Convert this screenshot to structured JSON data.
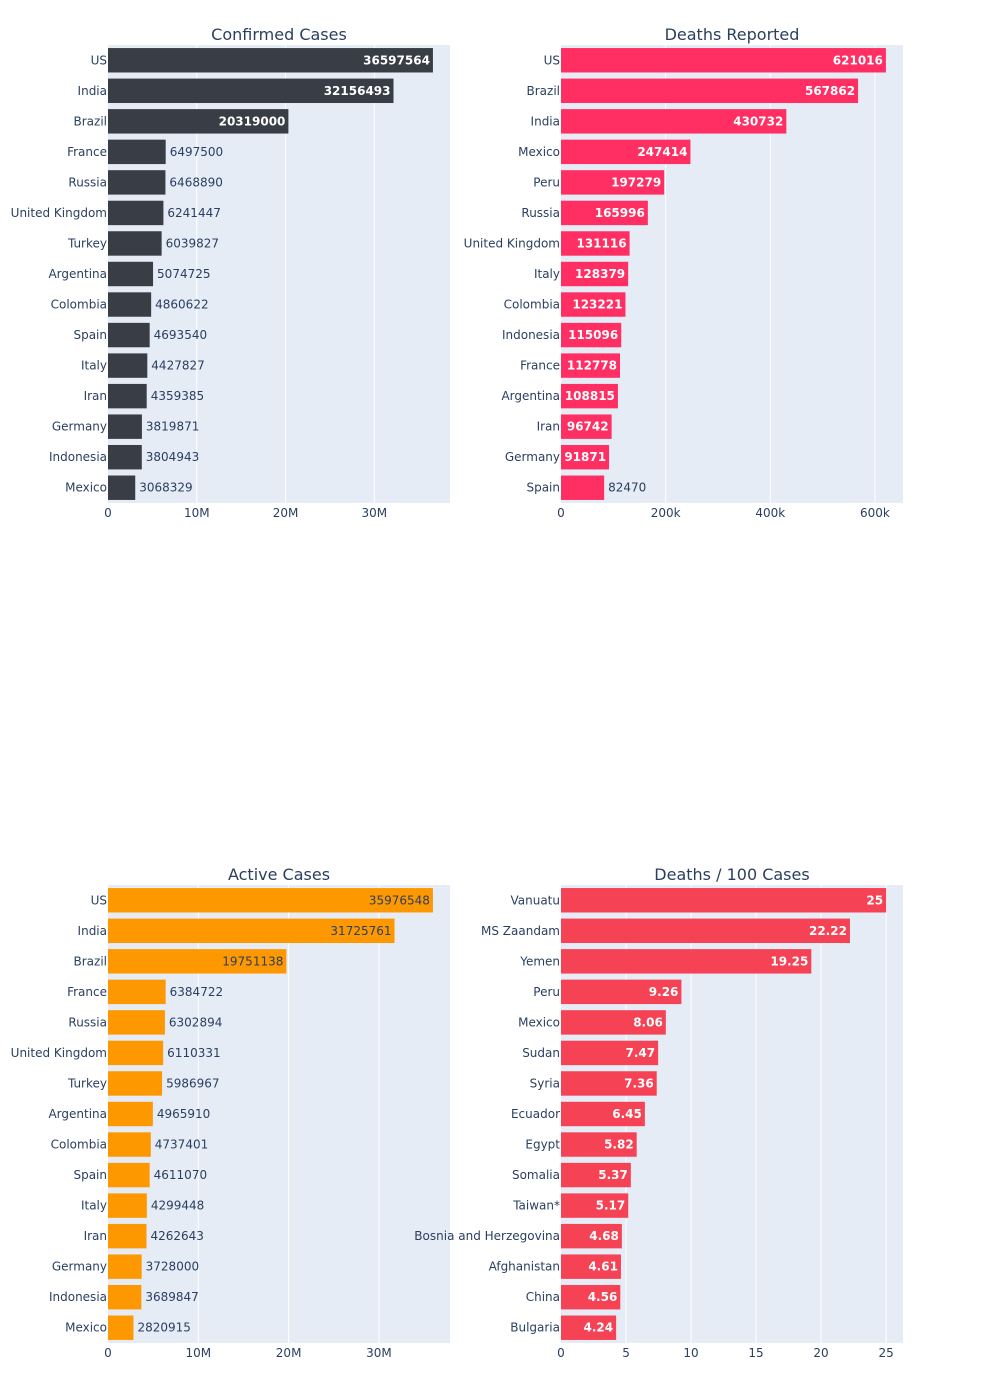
{
  "chart_data": [
    {
      "type": "bar",
      "orientation": "horizontal",
      "title": "Confirmed Cases",
      "color": "#393e46",
      "categories": [
        "US",
        "India",
        "Brazil",
        "France",
        "Russia",
        "United Kingdom",
        "Turkey",
        "Argentina",
        "Colombia",
        "Spain",
        "Italy",
        "Iran",
        "Germany",
        "Indonesia",
        "Mexico"
      ],
      "values": [
        36597564,
        32156493,
        20319000,
        6497500,
        6468890,
        6241447,
        6039827,
        5074725,
        4860622,
        4693540,
        4427827,
        4359385,
        3819871,
        3804943,
        3068329
      ],
      "xlim": [
        0,
        38520000
      ],
      "xticks": [
        0,
        10000000,
        20000000,
        30000000
      ],
      "xticklabels": [
        "0",
        "10M",
        "20M",
        "30M"
      ],
      "xlabel": "",
      "ylabel": ""
    },
    {
      "type": "bar",
      "orientation": "horizontal",
      "title": "Deaths Reported",
      "color": "#ff2e63",
      "categories": [
        "US",
        "Brazil",
        "India",
        "Mexico",
        "Peru",
        "Russia",
        "United Kingdom",
        "Italy",
        "Colombia",
        "Indonesia",
        "France",
        "Argentina",
        "Iran",
        "Germany",
        "Spain"
      ],
      "values": [
        621016,
        567862,
        430732,
        247414,
        197279,
        165996,
        131116,
        128379,
        123221,
        115096,
        112778,
        108815,
        96742,
        91871,
        82470
      ],
      "xlim": [
        0,
        653700
      ],
      "xticks": [
        0,
        200000,
        400000,
        600000
      ],
      "xticklabels": [
        "0",
        "200k",
        "400k",
        "600k"
      ],
      "xlabel": "",
      "ylabel": ""
    },
    {
      "type": "bar",
      "orientation": "horizontal",
      "title": "Active Cases",
      "color": "#fe9801",
      "categories": [
        "US",
        "India",
        "Brazil",
        "France",
        "Russia",
        "United Kingdom",
        "Turkey",
        "Argentina",
        "Colombia",
        "Spain",
        "Italy",
        "Iran",
        "Germany",
        "Indonesia",
        "Mexico"
      ],
      "values": [
        35976548,
        31725761,
        19751138,
        6384722,
        6302894,
        6110331,
        5986967,
        4965910,
        4737401,
        4611070,
        4299448,
        4262643,
        3728000,
        3689847,
        2820915
      ],
      "xlim": [
        0,
        37870000
      ],
      "xticks": [
        0,
        10000000,
        20000000,
        30000000
      ],
      "xticklabels": [
        "0",
        "10M",
        "20M",
        "30M"
      ],
      "xlabel": "",
      "ylabel": ""
    },
    {
      "type": "bar",
      "orientation": "horizontal",
      "title": "Deaths / 100 Cases",
      "color": "#f54254",
      "categories": [
        "Vanuatu",
        "MS Zaandam",
        "Yemen",
        "Peru",
        "Mexico",
        "Sudan",
        "Syria",
        "Ecuador",
        "Egypt",
        "Somalia",
        "Taiwan*",
        "Bosnia and Herzegovina",
        "Afghanistan",
        "China",
        "Bulgaria"
      ],
      "values": [
        25,
        22.22,
        19.25,
        9.26,
        8.06,
        7.47,
        7.36,
        6.45,
        5.82,
        5.37,
        5.17,
        4.68,
        4.61,
        4.56,
        4.24
      ],
      "labels": [
        "25",
        "22.22",
        "19.25",
        "9.26",
        "8.06",
        "7.47",
        "7.36",
        "6.45",
        "5.82",
        "5.37",
        "5.17",
        "4.68",
        "4.61",
        "4.56",
        "4.24"
      ],
      "xlim": [
        0,
        26.3
      ],
      "xticks": [
        0,
        5,
        10,
        15,
        20,
        25
      ],
      "xticklabels": [
        "0",
        "5",
        "10",
        "15",
        "20",
        "25"
      ],
      "xlabel": "",
      "ylabel": ""
    }
  ]
}
